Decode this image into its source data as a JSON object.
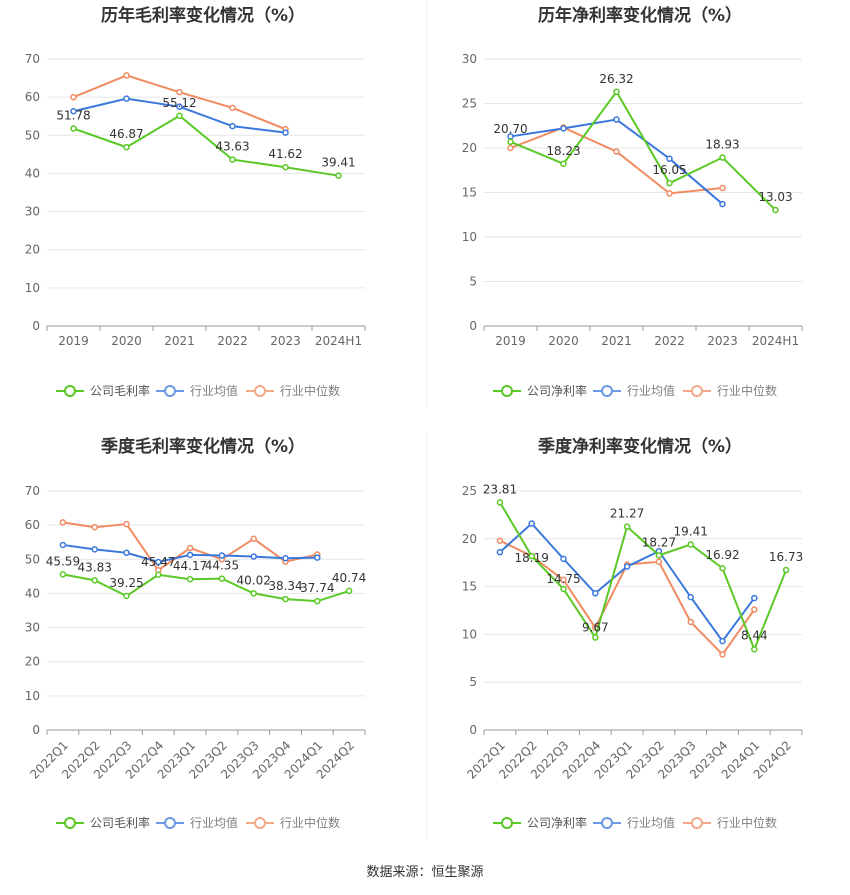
{
  "source_text": "数据来源：恒生聚源",
  "colors": {
    "company": "#5ac825",
    "avg": "#3a78dd",
    "median": "#f08b62"
  },
  "chart_data": [
    {
      "type": "line",
      "title": "历年毛利率变化情况（%）",
      "categories": [
        "2019",
        "2020",
        "2021",
        "2022",
        "2023",
        "2024H1"
      ],
      "ylim": [
        0,
        70
      ],
      "yticks": [
        0,
        10,
        20,
        30,
        40,
        50,
        60,
        70
      ],
      "grid": true,
      "legend": "bottom",
      "series": [
        {
          "name": "公司毛利率",
          "key": "company",
          "values": [
            51.78,
            46.87,
            55.12,
            43.63,
            41.62,
            39.41
          ],
          "labels": [
            "51.78",
            "46.87",
            "55.12",
            "43.63",
            "41.62",
            "39.41"
          ]
        },
        {
          "name": "行业均值",
          "key": "avg",
          "values": [
            56.3,
            59.6,
            57.5,
            52.4,
            50.7,
            null
          ]
        },
        {
          "name": "行业中位数",
          "key": "median",
          "values": [
            60.0,
            65.7,
            61.3,
            57.2,
            51.6,
            null
          ]
        }
      ]
    },
    {
      "type": "line",
      "title": "历年净利率变化情况（%）",
      "categories": [
        "2019",
        "2020",
        "2021",
        "2022",
        "2023",
        "2024H1"
      ],
      "ylim": [
        0,
        30
      ],
      "yticks": [
        0,
        5,
        10,
        15,
        20,
        25,
        30
      ],
      "grid": true,
      "legend": "bottom",
      "series": [
        {
          "name": "公司净利率",
          "key": "company",
          "values": [
            20.7,
            18.23,
            26.32,
            16.05,
            18.93,
            13.03
          ],
          "labels": [
            "20.70",
            "18.23",
            "26.32",
            "16.05",
            "18.93",
            "13.03"
          ]
        },
        {
          "name": "行业均值",
          "key": "avg",
          "values": [
            21.3,
            22.2,
            23.2,
            18.8,
            13.7,
            null
          ]
        },
        {
          "name": "行业中位数",
          "key": "median",
          "values": [
            20.0,
            22.3,
            19.6,
            14.9,
            15.5,
            null
          ]
        }
      ]
    },
    {
      "type": "line",
      "title": "季度毛利率变化情况（%）",
      "categories": [
        "2022Q1",
        "2022Q2",
        "2022Q3",
        "2022Q4",
        "2023Q1",
        "2023Q2",
        "2023Q3",
        "2023Q4",
        "2024Q1",
        "2024Q2"
      ],
      "ylim": [
        0,
        70
      ],
      "yticks": [
        0,
        10,
        20,
        30,
        40,
        50,
        60,
        70
      ],
      "grid": true,
      "legend": "bottom",
      "series": [
        {
          "name": "公司毛利率",
          "key": "company",
          "values": [
            45.59,
            43.83,
            39.25,
            45.47,
            44.17,
            44.35,
            40.02,
            38.34,
            37.74,
            40.74
          ],
          "labels": [
            "45.59",
            "43.83",
            "39.25",
            "45.47",
            "44.17",
            "44.35",
            "40.02",
            "38.34",
            "37.74",
            "40.74"
          ]
        },
        {
          "name": "行业均值",
          "key": "avg",
          "values": [
            54.2,
            52.9,
            51.9,
            49.2,
            51.3,
            51.1,
            50.8,
            50.3,
            50.5,
            null
          ]
        },
        {
          "name": "行业中位数",
          "key": "median",
          "values": [
            60.8,
            59.4,
            60.3,
            46.8,
            53.3,
            50.0,
            56.0,
            49.3,
            51.4,
            null
          ]
        }
      ]
    },
    {
      "type": "line",
      "title": "季度净利率变化情况（%）",
      "categories": [
        "2022Q1",
        "2022Q2",
        "2022Q3",
        "2022Q4",
        "2023Q1",
        "2023Q2",
        "2023Q3",
        "2023Q4",
        "2024Q1",
        "2024Q2"
      ],
      "ylim": [
        0,
        25
      ],
      "yticks": [
        0,
        5,
        10,
        15,
        20,
        25
      ],
      "grid": true,
      "legend": "bottom",
      "series": [
        {
          "name": "公司净利率",
          "key": "company",
          "values": [
            23.81,
            18.19,
            14.75,
            9.67,
            21.27,
            18.27,
            19.41,
            16.92,
            8.44,
            16.73
          ],
          "labels": [
            "23.81",
            "18.19",
            "14.75",
            "9.67",
            "21.27",
            "18.27",
            "19.41",
            "16.92",
            "8.44",
            "16.73"
          ]
        },
        {
          "name": "行业均值",
          "key": "avg",
          "values": [
            18.6,
            21.6,
            17.9,
            14.3,
            17.1,
            18.7,
            13.9,
            9.3,
            13.8,
            null
          ]
        },
        {
          "name": "行业中位数",
          "key": "median",
          "values": [
            19.8,
            18.2,
            15.7,
            10.7,
            17.3,
            17.6,
            11.3,
            7.9,
            12.6,
            null
          ]
        }
      ]
    }
  ]
}
